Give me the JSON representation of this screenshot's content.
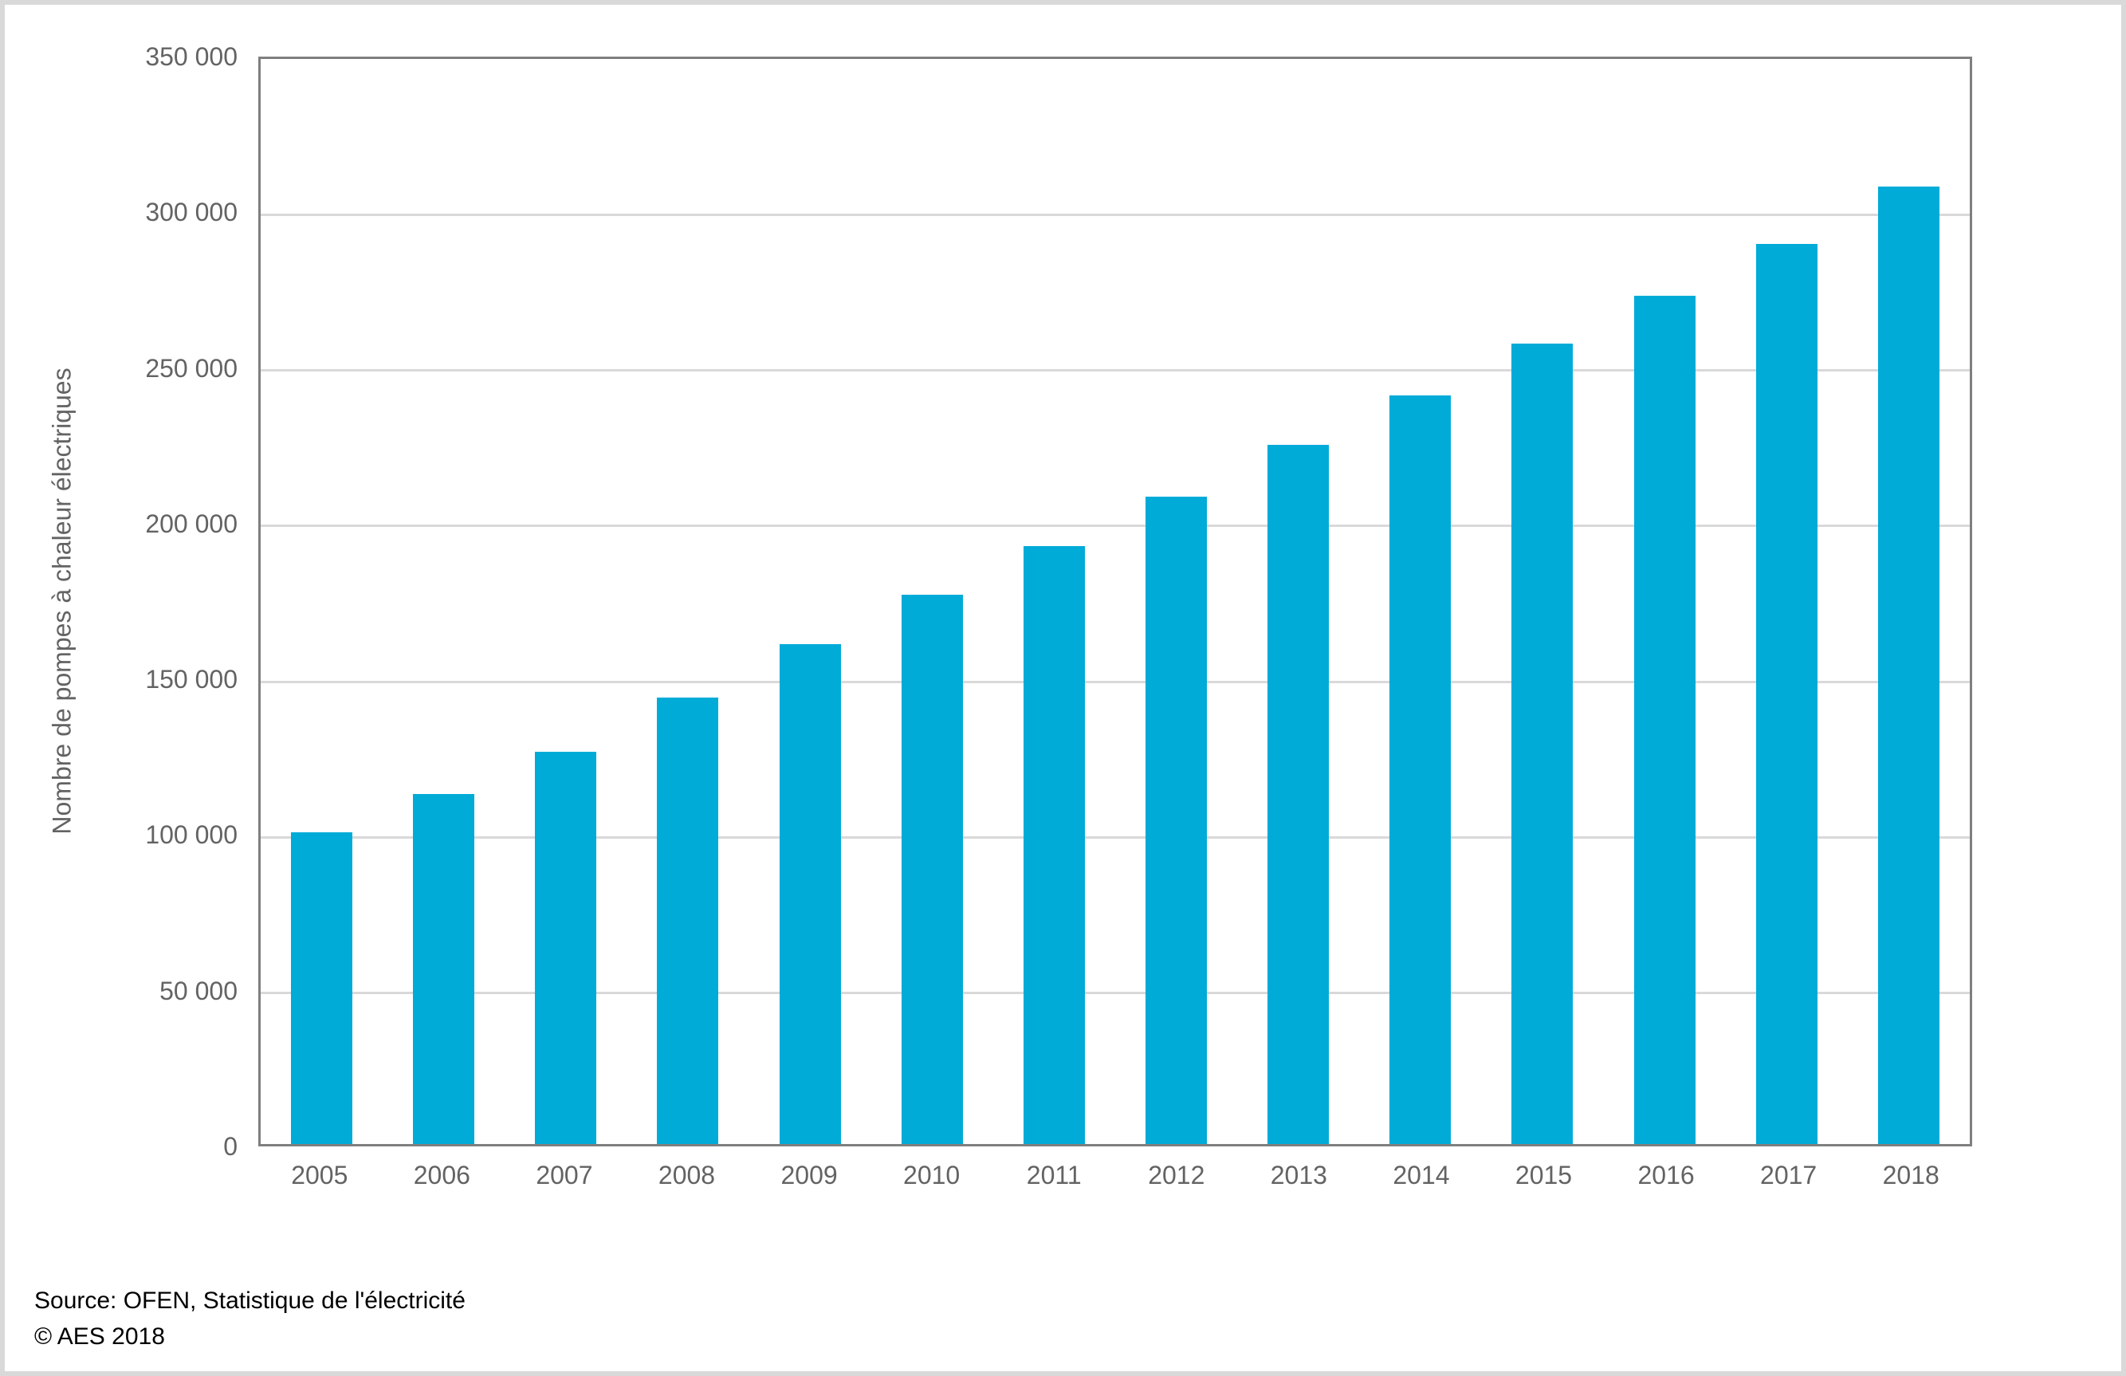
{
  "chart_data": {
    "type": "bar",
    "title": "",
    "xlabel": "",
    "ylabel": "Nombre de pompes à chaleur électriques",
    "categories": [
      "2005",
      "2006",
      "2007",
      "2008",
      "2009",
      "2010",
      "2011",
      "2012",
      "2013",
      "2014",
      "2015",
      "2016",
      "2017",
      "2018"
    ],
    "values": [
      100000,
      112500,
      126000,
      143500,
      160500,
      176500,
      192000,
      208000,
      224500,
      240500,
      257000,
      272500,
      289000,
      307500
    ],
    "ylim": [
      0,
      350000
    ],
    "ytick_interval": 50000,
    "ytick_labels_top_down": [
      "350 000",
      "300 000",
      "250 000",
      "200 000",
      "150 000",
      "100 000",
      "50 000",
      "0"
    ],
    "grid": "horizontal",
    "legend_position": "none",
    "bar_color": "#00abd8",
    "gridline_color": "#d9d9d9",
    "axis_border_color": "#7f7f7f",
    "tick_label_color": "#636363"
  },
  "footer": {
    "source_line": "Source: OFEN, Statistique de l'électricité",
    "copyright_line": "© AES 2018"
  }
}
